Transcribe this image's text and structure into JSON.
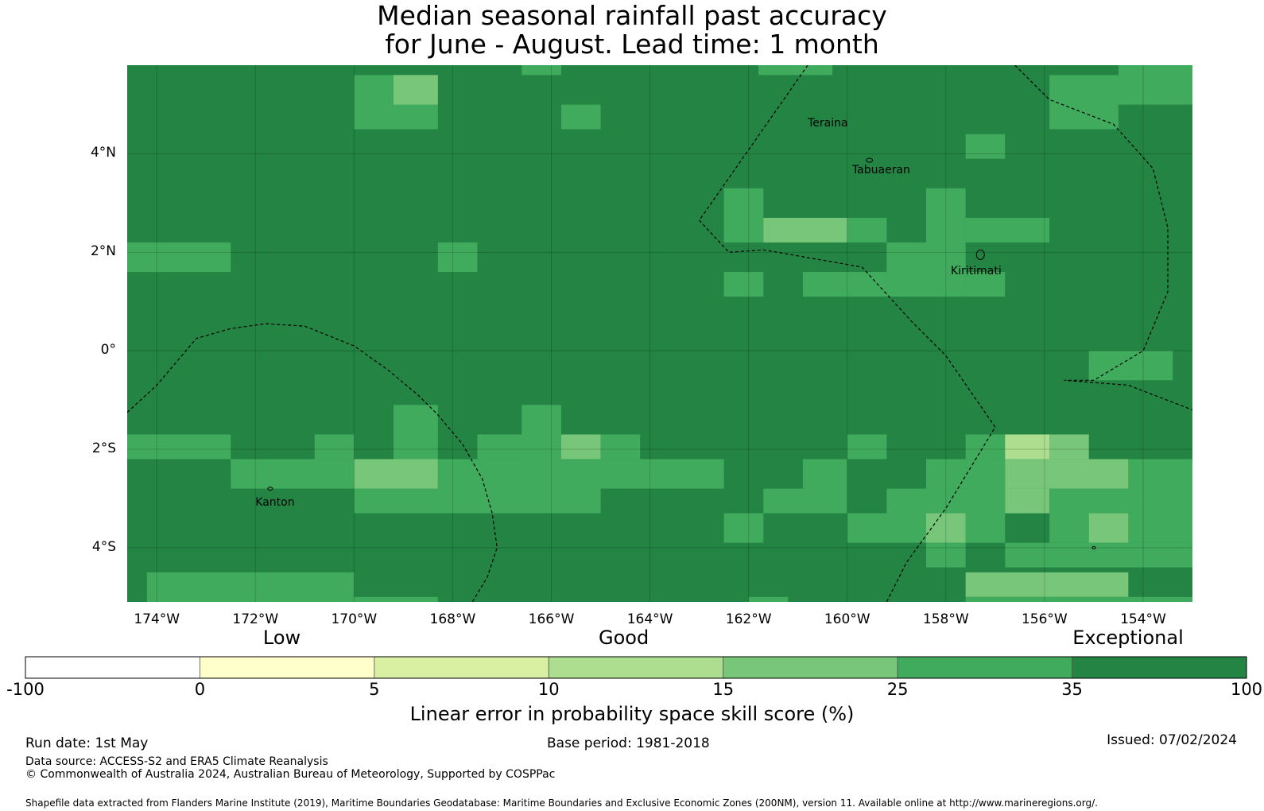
{
  "title": {
    "line1": "Median seasonal rainfall past accuracy",
    "line2": "for June - August. Lead time: 1 month"
  },
  "map": {
    "extent": {
      "lon_min": -174.6,
      "lon_max": -153.0,
      "lat_min": -5.1,
      "lat_max": 5.8
    },
    "lat_ticks": [
      {
        "value": 4,
        "label": "4°N"
      },
      {
        "value": 2,
        "label": "2°N"
      },
      {
        "value": 0,
        "label": "0°"
      },
      {
        "value": -2,
        "label": "2°S"
      },
      {
        "value": -4,
        "label": "4°S"
      }
    ],
    "lon_ticks": [
      {
        "value": -174,
        "label": "174°W"
      },
      {
        "value": -172,
        "label": "172°W"
      },
      {
        "value": -170,
        "label": "170°W"
      },
      {
        "value": -168,
        "label": "168°W"
      },
      {
        "value": -166,
        "label": "166°W"
      },
      {
        "value": -164,
        "label": "164°W"
      },
      {
        "value": -162,
        "label": "162°W"
      },
      {
        "value": -160,
        "label": "160°W"
      },
      {
        "value": -158,
        "label": "158°W"
      },
      {
        "value": -156,
        "label": "156°W"
      },
      {
        "value": -154,
        "label": "154°W"
      }
    ],
    "places": [
      {
        "name": "Teraina",
        "lon": -160.8,
        "lat": 4.6
      },
      {
        "name": "Tabuaeran",
        "lon": -159.9,
        "lat": 3.65
      },
      {
        "name": "Kiritimati",
        "lon": -157.9,
        "lat": 1.6
      },
      {
        "name": "Kanton",
        "lon": -172.0,
        "lat": -3.1
      }
    ],
    "base_class": 6,
    "cells": [
      {
        "lon": [
          -170.0,
          -168.3
        ],
        "lat": [
          4.5,
          5.6
        ],
        "c": 5
      },
      {
        "lon": [
          -169.2,
          -168.3
        ],
        "lat": [
          5.0,
          5.6
        ],
        "c": 4
      },
      {
        "lon": [
          -165.8,
          -165.0
        ],
        "lat": [
          4.5,
          5.0
        ],
        "c": 5
      },
      {
        "lon": [
          -166.6,
          -165.8
        ],
        "lat": [
          5.6,
          5.8
        ],
        "c": 5
      },
      {
        "lon": [
          -161.8,
          -160.3
        ],
        "lat": [
          5.6,
          5.8
        ],
        "c": 5
      },
      {
        "lon": [
          -157.6,
          -156.8
        ],
        "lat": [
          3.9,
          4.4
        ],
        "c": 5
      },
      {
        "lon": [
          -155.9,
          -154.5
        ],
        "lat": [
          4.5,
          5.6
        ],
        "c": 5
      },
      {
        "lon": [
          -154.5,
          -153.0
        ],
        "lat": [
          5.0,
          5.8
        ],
        "c": 5
      },
      {
        "lon": [
          -162.5,
          -161.7
        ],
        "lat": [
          2.2,
          3.3
        ],
        "c": 5
      },
      {
        "lon": [
          -161.7,
          -160.0
        ],
        "lat": [
          2.2,
          2.7
        ],
        "c": 4
      },
      {
        "lon": [
          -160.0,
          -159.2
        ],
        "lat": [
          2.2,
          2.7
        ],
        "c": 5
      },
      {
        "lon": [
          -158.4,
          -157.6
        ],
        "lat": [
          1.1,
          3.3
        ],
        "c": 5
      },
      {
        "lon": [
          -157.6,
          -155.9
        ],
        "lat": [
          2.2,
          2.7
        ],
        "c": 5
      },
      {
        "lon": [
          -159.2,
          -158.4
        ],
        "lat": [
          1.1,
          2.2
        ],
        "c": 5
      },
      {
        "lon": [
          -160.9,
          -159.2
        ],
        "lat": [
          1.1,
          1.6
        ],
        "c": 5
      },
      {
        "lon": [
          -162.5,
          -161.7
        ],
        "lat": [
          1.1,
          1.6
        ],
        "c": 5
      },
      {
        "lon": [
          -157.6,
          -156.8
        ],
        "lat": [
          1.1,
          1.6
        ],
        "c": 5
      },
      {
        "lon": [
          -174.6,
          -172.5
        ],
        "lat": [
          1.6,
          2.2
        ],
        "c": 5
      },
      {
        "lon": [
          -168.3,
          -167.5
        ],
        "lat": [
          1.6,
          2.2
        ],
        "c": 5
      },
      {
        "lon": [
          -155.1,
          -153.4
        ],
        "lat": [
          -0.6,
          0.0
        ],
        "c": 5
      },
      {
        "lon": [
          -169.2,
          -168.3
        ],
        "lat": [
          -2.2,
          -1.1
        ],
        "c": 5
      },
      {
        "lon": [
          -166.6,
          -165.8
        ],
        "lat": [
          -2.2,
          -1.1
        ],
        "c": 5
      },
      {
        "lon": [
          -174.6,
          -172.5
        ],
        "lat": [
          -2.2,
          -1.7
        ],
        "c": 5
      },
      {
        "lon": [
          -170.8,
          -170.0
        ],
        "lat": [
          -2.2,
          -1.7
        ],
        "c": 5
      },
      {
        "lon": [
          -167.5,
          -165.8
        ],
        "lat": [
          -2.2,
          -1.7
        ],
        "c": 5
      },
      {
        "lon": [
          -165.8,
          -165.0
        ],
        "lat": [
          -2.2,
          -1.7
        ],
        "c": 4
      },
      {
        "lon": [
          -165.0,
          -164.2
        ],
        "lat": [
          -2.2,
          -1.7
        ],
        "c": 5
      },
      {
        "lon": [
          -160.0,
          -159.2
        ],
        "lat": [
          -2.2,
          -1.7
        ],
        "c": 5
      },
      {
        "lon": [
          -157.6,
          -156.8
        ],
        "lat": [
          -2.2,
          -1.7
        ],
        "c": 5
      },
      {
        "lon": [
          -156.8,
          -155.9
        ],
        "lat": [
          -2.2,
          -1.7
        ],
        "c": 3
      },
      {
        "lon": [
          -155.9,
          -155.1
        ],
        "lat": [
          -2.2,
          -1.7
        ],
        "c": 4
      },
      {
        "lon": [
          -172.5,
          -170.0
        ],
        "lat": [
          -2.8,
          -2.2
        ],
        "c": 5
      },
      {
        "lon": [
          -170.0,
          -168.3
        ],
        "lat": [
          -2.8,
          -2.2
        ],
        "c": 4
      },
      {
        "lon": [
          -168.3,
          -162.5
        ],
        "lat": [
          -2.8,
          -2.2
        ],
        "c": 5
      },
      {
        "lon": [
          -160.9,
          -160.0
        ],
        "lat": [
          -2.8,
          -2.2
        ],
        "c": 5
      },
      {
        "lon": [
          -158.4,
          -156.8
        ],
        "lat": [
          -2.8,
          -2.2
        ],
        "c": 5
      },
      {
        "lon": [
          -156.8,
          -154.3
        ],
        "lat": [
          -2.8,
          -2.2
        ],
        "c": 4
      },
      {
        "lon": [
          -154.3,
          -153.0
        ],
        "lat": [
          -2.8,
          -2.2
        ],
        "c": 5
      },
      {
        "lon": [
          -170.0,
          -165.0
        ],
        "lat": [
          -3.3,
          -2.8
        ],
        "c": 5
      },
      {
        "lon": [
          -161.7,
          -160.0
        ],
        "lat": [
          -3.3,
          -2.8
        ],
        "c": 5
      },
      {
        "lon": [
          -159.2,
          -156.8
        ],
        "lat": [
          -3.3,
          -2.8
        ],
        "c": 5
      },
      {
        "lon": [
          -156.8,
          -155.9
        ],
        "lat": [
          -3.3,
          -2.8
        ],
        "c": 4
      },
      {
        "lon": [
          -155.9,
          -153.0
        ],
        "lat": [
          -3.3,
          -2.8
        ],
        "c": 5
      },
      {
        "lon": [
          -162.5,
          -161.7
        ],
        "lat": [
          -3.9,
          -3.3
        ],
        "c": 5
      },
      {
        "lon": [
          -160.0,
          -158.4
        ],
        "lat": [
          -3.9,
          -3.3
        ],
        "c": 5
      },
      {
        "lon": [
          -158.4,
          -157.6
        ],
        "lat": [
          -3.9,
          -3.3
        ],
        "c": 4
      },
      {
        "lon": [
          -157.6,
          -156.8
        ],
        "lat": [
          -3.9,
          -3.3
        ],
        "c": 5
      },
      {
        "lon": [
          -155.9,
          -155.1
        ],
        "lat": [
          -3.9,
          -3.3
        ],
        "c": 5
      },
      {
        "lon": [
          -155.1,
          -154.3
        ],
        "lat": [
          -3.9,
          -3.3
        ],
        "c": 4
      },
      {
        "lon": [
          -154.3,
          -153.0
        ],
        "lat": [
          -3.9,
          -3.3
        ],
        "c": 5
      },
      {
        "lon": [
          -158.4,
          -157.6
        ],
        "lat": [
          -4.4,
          -3.9
        ],
        "c": 5
      },
      {
        "lon": [
          -156.8,
          -153.0
        ],
        "lat": [
          -4.4,
          -3.9
        ],
        "c": 5
      },
      {
        "lon": [
          -174.2,
          -170.0
        ],
        "lat": [
          -5.1,
          -4.5
        ],
        "c": 5
      },
      {
        "lon": [
          -157.6,
          -154.3
        ],
        "lat": [
          -5.0,
          -4.5
        ],
        "c": 4
      },
      {
        "lon": [
          -157.6,
          -153.0
        ],
        "lat": [
          -5.1,
          -5.0
        ],
        "c": 5
      },
      {
        "lon": [
          -162.0,
          -161.2
        ],
        "lat": [
          -5.1,
          -5.0
        ],
        "c": 5
      },
      {
        "lon": [
          -170.0,
          -168.3
        ],
        "lat": [
          -5.1,
          -5.0
        ],
        "c": 5
      }
    ],
    "boundaries": [
      [
        [
          -160.8,
          5.8
        ],
        [
          -163.0,
          2.65
        ],
        [
          -162.4,
          2.0
        ],
        [
          -161.7,
          2.05
        ],
        [
          -159.7,
          1.7
        ],
        [
          -158.7,
          0.6
        ],
        [
          -158.0,
          -0.1
        ],
        [
          -157.0,
          -1.55
        ],
        [
          -158.0,
          -3.2
        ],
        [
          -158.8,
          -4.3
        ],
        [
          -159.2,
          -5.1
        ]
      ],
      [
        [
          -156.6,
          5.8
        ],
        [
          -155.9,
          5.1
        ],
        [
          -154.6,
          4.6
        ],
        [
          -153.8,
          3.7
        ],
        [
          -153.5,
          2.5
        ],
        [
          -153.5,
          1.2
        ],
        [
          -154.0,
          0.0
        ],
        [
          -155.0,
          -0.6
        ],
        [
          -155.6,
          -0.6
        ],
        [
          -154.3,
          -0.7
        ],
        [
          -153.0,
          -1.2
        ]
      ],
      [
        [
          -174.6,
          -1.25
        ],
        [
          -174.0,
          -0.7
        ],
        [
          -173.2,
          0.25
        ],
        [
          -172.5,
          0.45
        ],
        [
          -171.8,
          0.55
        ],
        [
          -171.0,
          0.5
        ],
        [
          -170.0,
          0.1
        ],
        [
          -169.3,
          -0.4
        ],
        [
          -168.7,
          -0.9
        ],
        [
          -168.3,
          -1.3
        ],
        [
          -167.8,
          -1.9
        ],
        [
          -167.4,
          -2.6
        ],
        [
          -167.2,
          -3.3
        ],
        [
          -167.1,
          -4.0
        ],
        [
          -167.3,
          -4.6
        ],
        [
          -167.6,
          -5.1
        ]
      ]
    ]
  },
  "colorbar": {
    "bounds": [
      "-100",
      "0",
      "5",
      "10",
      "15",
      "25",
      "35",
      "100"
    ],
    "colors": [
      "#ffffff",
      "#ffffcc",
      "#d9f0a3",
      "#addd8e",
      "#78c679",
      "#41ab5d",
      "#238443"
    ],
    "categories": [
      {
        "label": "Low",
        "pos": 0.21
      },
      {
        "label": "Good",
        "pos": 0.49
      },
      {
        "label": "Exceptional",
        "pos": 0.903
      }
    ],
    "label": "Linear error in probability space skill score (%)"
  },
  "footer": {
    "run_date": "Run date: 1st May",
    "base_period": "Base period: 1981-2018",
    "issued": "Issued: 07/02/2024",
    "data_source": "Data source: ACCESS-S2 and ERA5 Climate Reanalysis",
    "copyright": "© Commonwealth of Australia 2024, Australian Bureau of Meteorology, Supported by COSPPac",
    "shapefile": "Shapefile data extracted from Flanders Marine Institute (2019), Maritime Boundaries Geodatabase: Maritime Boundaries and Exclusive Economic Zones (200NM), version 11. Available online at http://www.marineregions.org/."
  }
}
